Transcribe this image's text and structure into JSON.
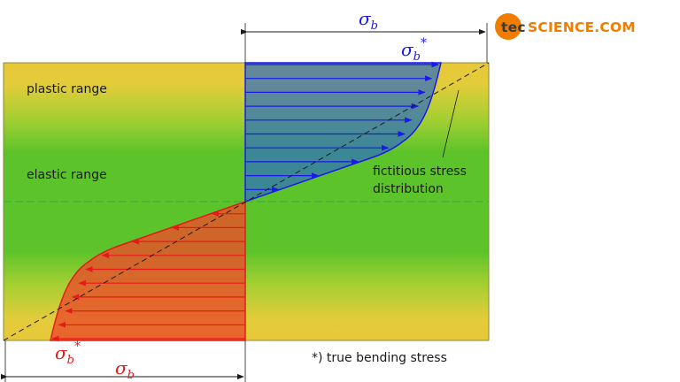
{
  "logo": {
    "brand_prefix": "tec",
    "brand_rest": "science.com",
    "lettering": "tec-science.com",
    "accent_color": "#f07d00"
  },
  "labels": {
    "plastic_range": "plastic range",
    "elastic_range": "elastic range",
    "fictitious_line1": "fictitious stress",
    "fictitious_line2": "distribution",
    "footnote": "*) true bending stress"
  },
  "symbols": {
    "sigma_b": "σ",
    "sub_b": "b",
    "star": "*"
  },
  "colors": {
    "tension": "#1a1ae6",
    "compression": "#e61a1a",
    "plastic_band": "#e8c838",
    "elastic_band": "#5cc42a",
    "neutral_axis": "#3caf3c"
  }
}
